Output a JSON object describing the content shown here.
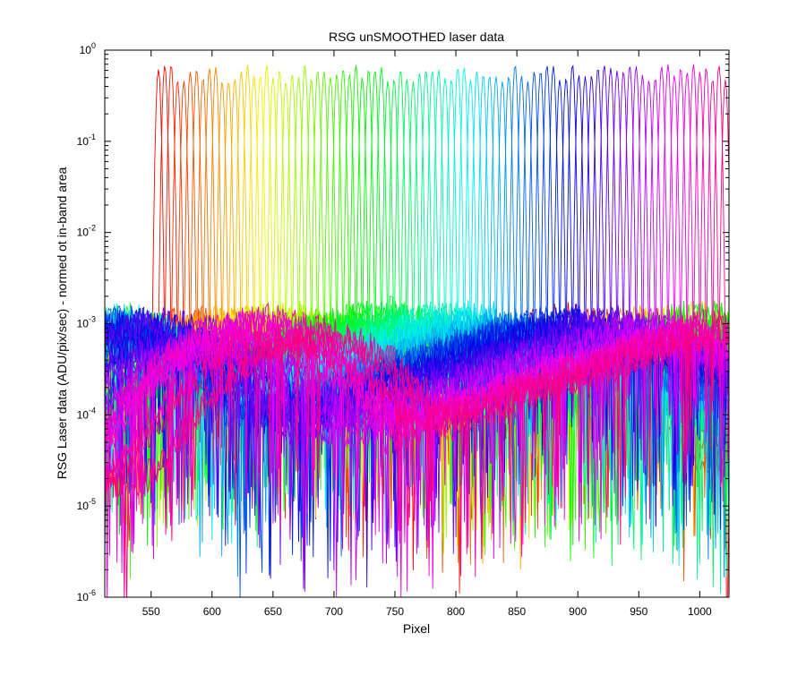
{
  "chart_data": {
    "type": "line",
    "title": "RSG unSMOOTHED laser data",
    "xlabel": "Pixel",
    "ylabel": "RSG Laser data (ADU/pix/sec) - normed ot in-band area",
    "xlim": [
      512,
      1024
    ],
    "ylim": [
      1e-06,
      1
    ],
    "yscale": "log",
    "grid": false,
    "legend": "none",
    "x_ticks": [
      550,
      600,
      650,
      700,
      750,
      800,
      850,
      900,
      950,
      1000
    ],
    "x_tick_labels": [
      "550",
      "600",
      "650",
      "700",
      "750",
      "800",
      "850",
      "900",
      "950",
      "1000"
    ],
    "y_ticks": [
      0,
      -1,
      -2,
      -3,
      -4,
      -5,
      -6
    ],
    "y_tick_bases": [
      "10",
      "10",
      "10",
      "10",
      "10",
      "10",
      "10"
    ],
    "y_tick_exponents": [
      "0",
      "-1",
      "-2",
      "-3",
      "-4",
      "-5",
      "-6"
    ],
    "series_count": 90,
    "peak_pixel_range": [
      556,
      1021
    ],
    "peak_height_range": [
      0.45,
      0.7
    ],
    "color_order": "red -> yellow -> green -> cyan -> blue -> magenta (hue sweep with increasing peak pixel)"
  }
}
